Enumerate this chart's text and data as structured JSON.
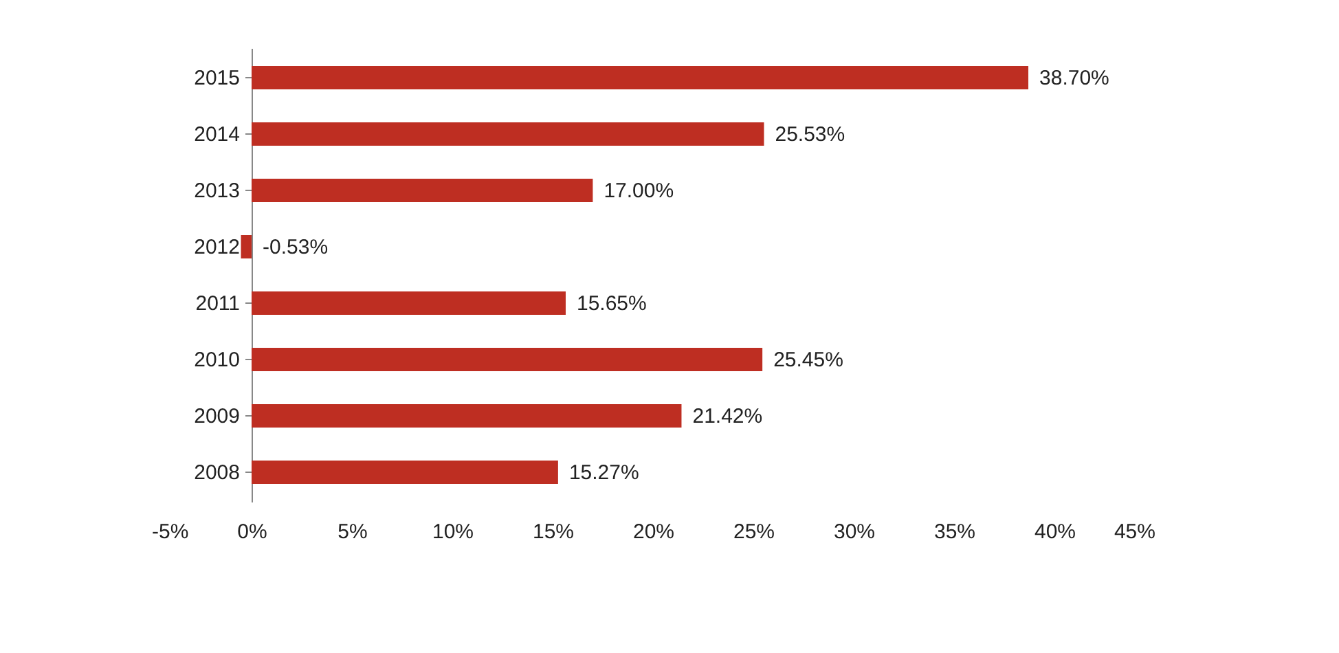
{
  "chart_data": {
    "type": "bar",
    "orientation": "horizontal",
    "categories": [
      "2015",
      "2014",
      "2013",
      "2012",
      "2011",
      "2010",
      "2009",
      "2008"
    ],
    "values": [
      38.7,
      25.53,
      17.0,
      -0.53,
      15.65,
      25.45,
      21.42,
      15.27
    ],
    "color": "#be2e22",
    "xlim": [
      -5,
      45
    ],
    "xticks": [
      {
        "value": -5,
        "label": "-5%"
      },
      {
        "value": 0,
        "label": "0%"
      },
      {
        "value": 5,
        "label": "5%"
      },
      {
        "value": 10,
        "label": "10%"
      },
      {
        "value": 15,
        "label": "15%"
      },
      {
        "value": 20,
        "label": "20%"
      },
      {
        "value": 25,
        "label": "25%"
      },
      {
        "value": 30,
        "label": "30%"
      },
      {
        "value": 35,
        "label": "35%"
      },
      {
        "value": 40,
        "label": "40%"
      },
      {
        "value": 45,
        "label": "45%"
      }
    ],
    "value_labels": [
      "38.70%",
      "25.53%",
      "17.00%",
      "-0.53%",
      "15.65%",
      "25.45%",
      "21.42%",
      "15.27%"
    ],
    "grid": false
  }
}
